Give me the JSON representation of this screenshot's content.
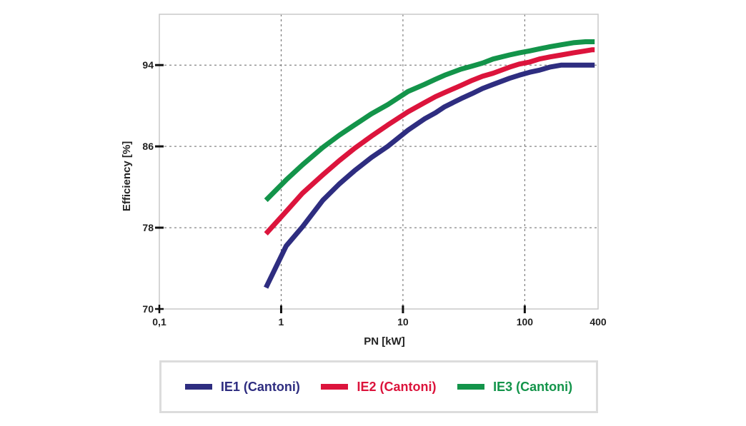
{
  "chart_data": {
    "type": "line",
    "xscale": "log",
    "xlim": [
      0.1,
      400
    ],
    "ylim": [
      70,
      99
    ],
    "x_ticks": [
      {
        "value": 0.1,
        "label": "0,1"
      },
      {
        "value": 1,
        "label": "1"
      },
      {
        "value": 10,
        "label": "10"
      },
      {
        "value": 100,
        "label": "100"
      },
      {
        "value": 400,
        "label": "400"
      }
    ],
    "y_ticks": [
      {
        "value": 70,
        "label": "70"
      },
      {
        "value": 78,
        "label": "78"
      },
      {
        "value": 86,
        "label": "86"
      },
      {
        "value": 94,
        "label": "94"
      }
    ],
    "xlabel": "PN [kW]",
    "ylabel": "Efficiency [%]",
    "grid": true,
    "legend_position": "bottom",
    "series": [
      {
        "name": "IE1 (Cantoni)",
        "color": "#2e2d80",
        "x": [
          0.75,
          1.1,
          1.5,
          2.2,
          3,
          4,
          5.5,
          7.5,
          11,
          15,
          18.5,
          22,
          30,
          37,
          45,
          55,
          75,
          90,
          110,
          132,
          160,
          200,
          250,
          315,
          355,
          375
        ],
        "y": [
          72.1,
          76.2,
          78.1,
          80.7,
          82.3,
          83.6,
          84.9,
          86.0,
          87.6,
          88.7,
          89.3,
          89.9,
          90.7,
          91.2,
          91.7,
          92.1,
          92.7,
          93.0,
          93.3,
          93.5,
          93.8,
          94.0,
          94.0,
          94.0,
          94.0,
          94.0
        ]
      },
      {
        "name": "IE2 (Cantoni)",
        "color": "#dc143c",
        "x": [
          0.75,
          1.1,
          1.5,
          2.2,
          3,
          4,
          5.5,
          7.5,
          11,
          15,
          18.5,
          22,
          30,
          37,
          45,
          55,
          75,
          90,
          110,
          132,
          160,
          200,
          250,
          315,
          355,
          375
        ],
        "y": [
          77.4,
          79.6,
          81.4,
          83.2,
          84.6,
          85.8,
          87.0,
          88.1,
          89.4,
          90.3,
          90.9,
          91.3,
          92.0,
          92.5,
          92.9,
          93.2,
          93.8,
          94.1,
          94.3,
          94.6,
          94.8,
          95.0,
          95.2,
          95.4,
          95.5,
          95.5
        ]
      },
      {
        "name": "IE3 (Cantoni)",
        "color": "#13944a",
        "x": [
          0.75,
          1.1,
          1.5,
          2.2,
          3,
          4,
          5.5,
          7.5,
          11,
          15,
          18.5,
          22,
          30,
          37,
          45,
          55,
          75,
          90,
          110,
          132,
          160,
          200,
          250,
          315,
          355,
          375
        ],
        "y": [
          80.7,
          82.7,
          84.2,
          85.9,
          87.1,
          88.1,
          89.2,
          90.1,
          91.4,
          92.1,
          92.6,
          93.0,
          93.6,
          93.9,
          94.2,
          94.6,
          95.0,
          95.2,
          95.4,
          95.6,
          95.8,
          96.0,
          96.2,
          96.3,
          96.3,
          96.3
        ]
      }
    ]
  }
}
